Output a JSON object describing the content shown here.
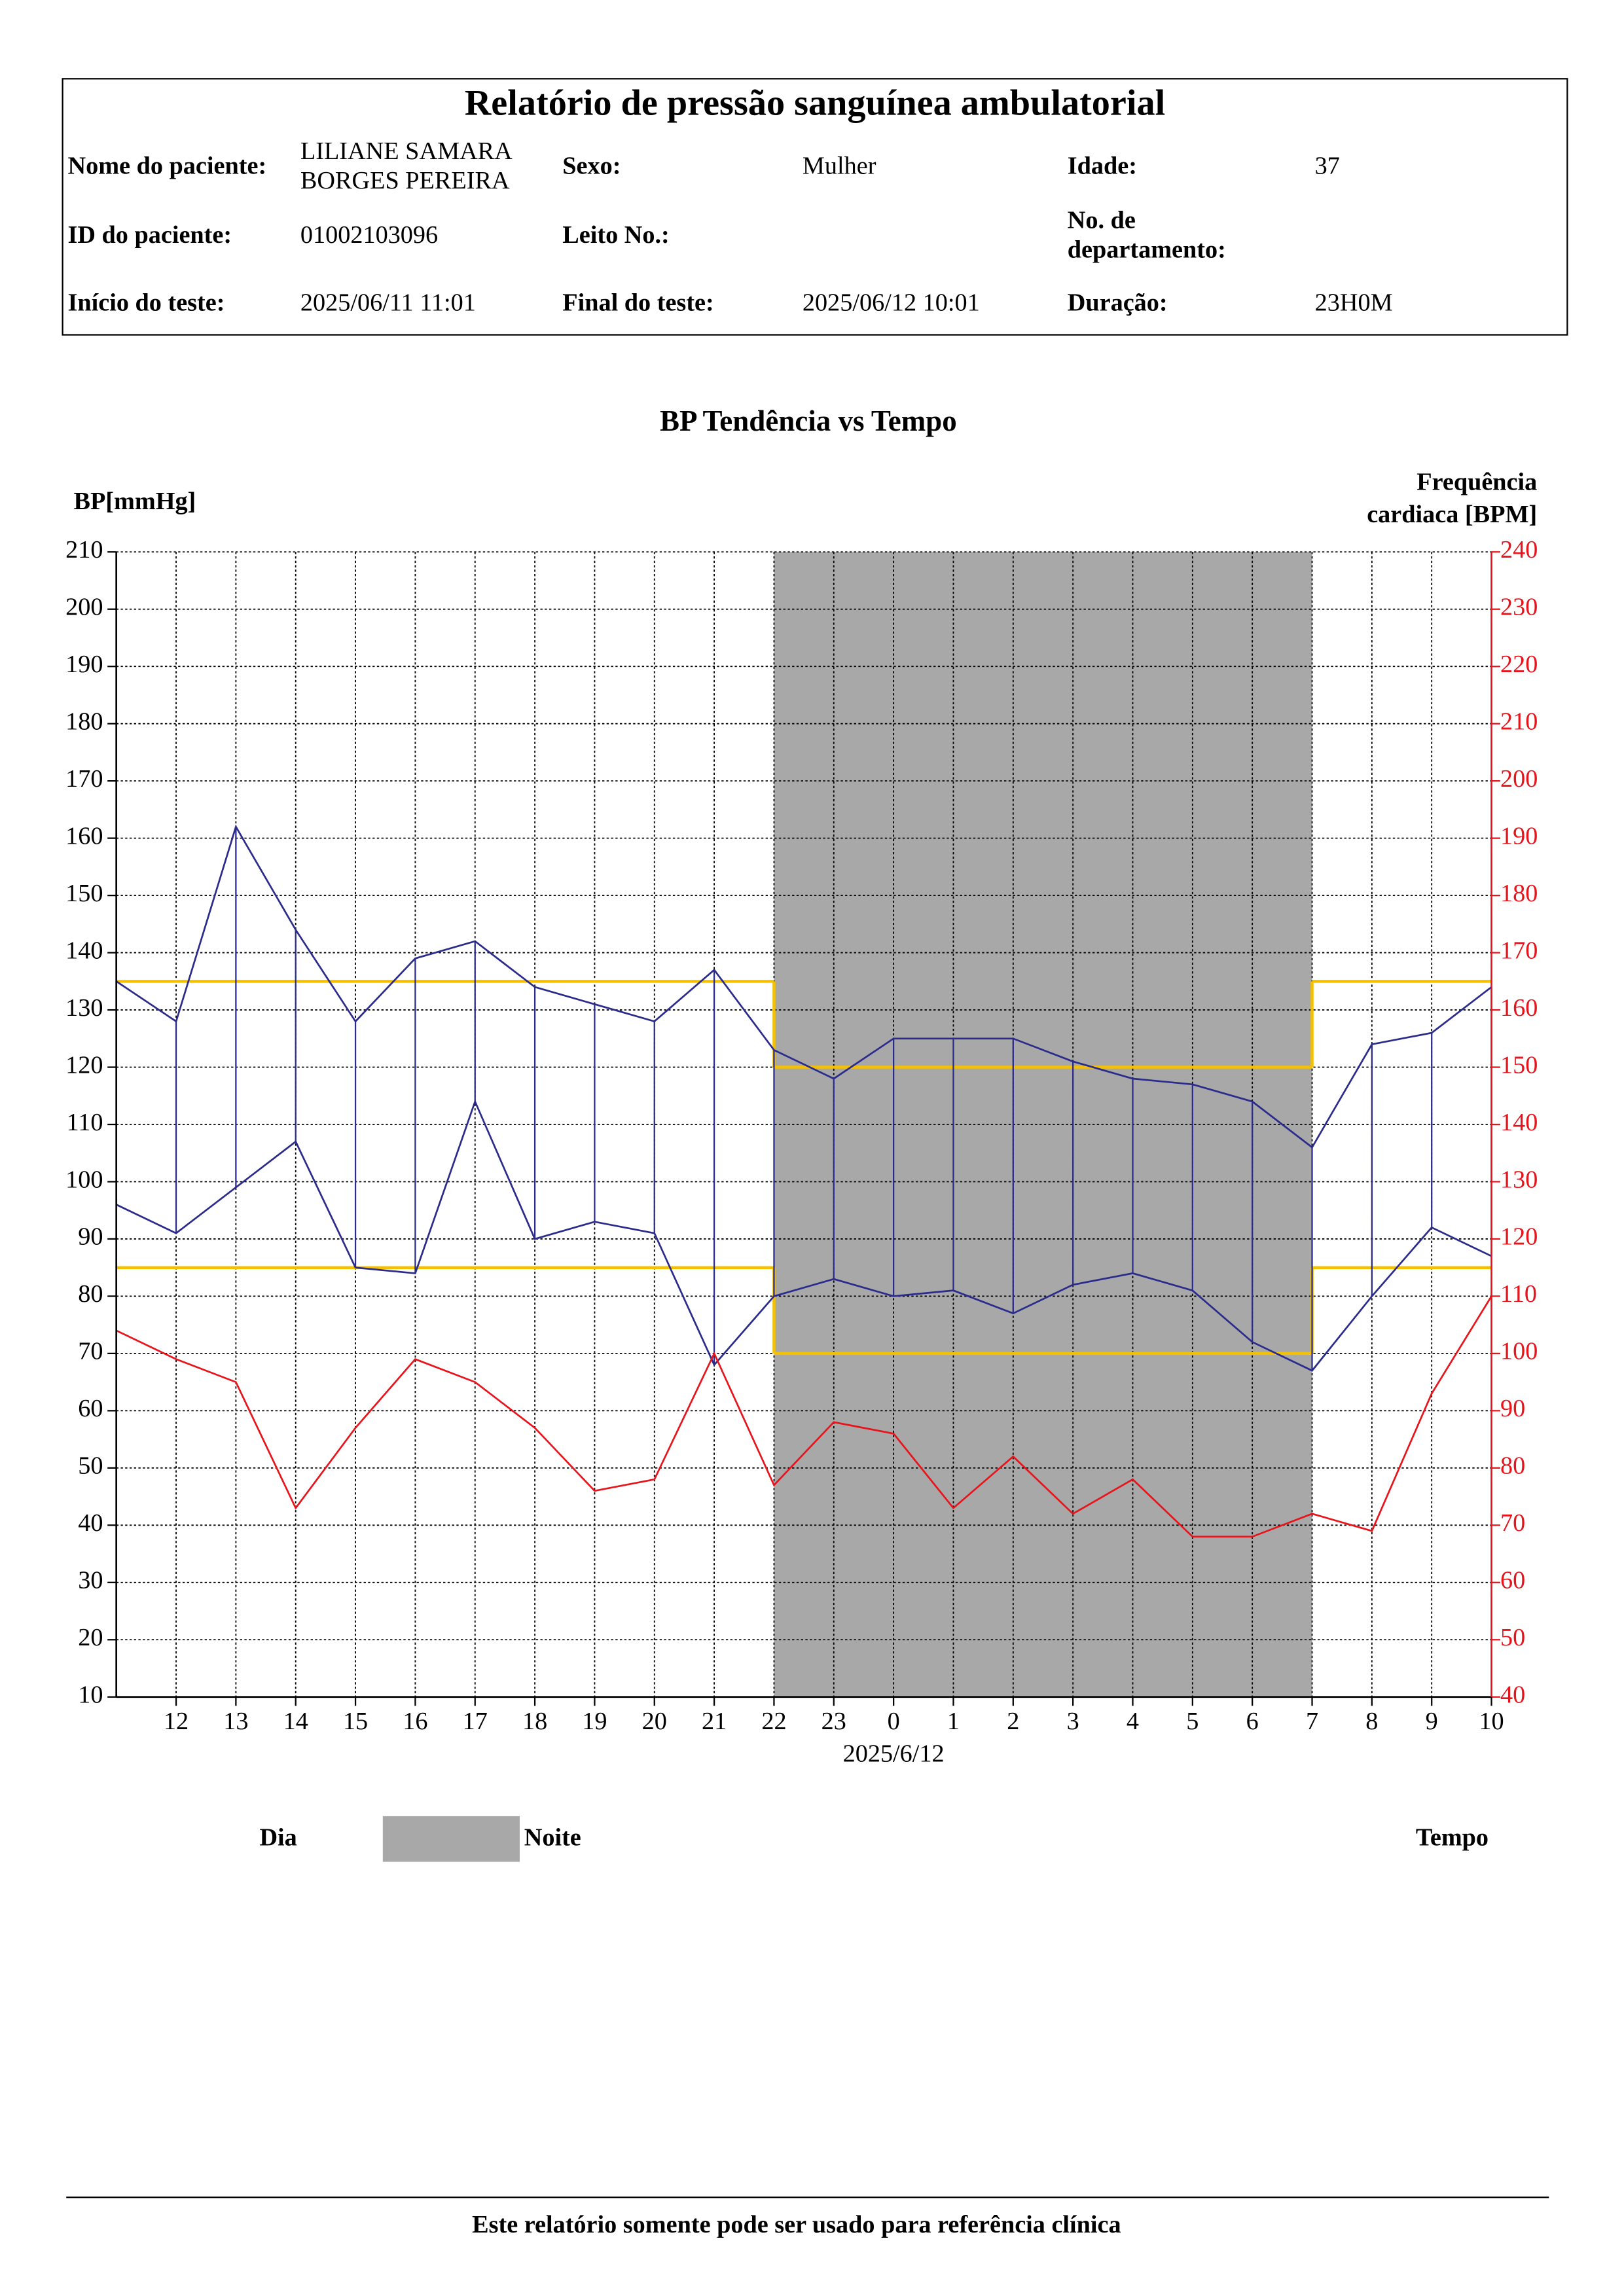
{
  "header": {
    "title": "Relatório de pressão sanguínea ambulatorial",
    "rows": [
      [
        {
          "label": "Nome do paciente:",
          "value": [
            "LILIANE SAMARA",
            "BORGES PEREIRA"
          ]
        },
        {
          "label": "Sexo:",
          "value": "Mulher"
        },
        {
          "label": "Idade:",
          "value": 37
        }
      ],
      [
        {
          "label": "ID do paciente:",
          "value": "01002103096"
        },
        {
          "label": "Leito No.:"
        },
        {
          "label": [
            "No. de",
            "departamento:"
          ]
        }
      ],
      [
        {
          "label": "Início do teste:",
          "value": "2025/06/11 11:01"
        },
        {
          "label": "Final do teste:",
          "value": "2025/06/12 10:01"
        },
        {
          "label": "Duração:",
          "value": "23H0M"
        }
      ]
    ]
  },
  "chart_data": {
    "type": "line",
    "title": "BP Tendência vs Tempo",
    "y_label": "BP[mmHg]",
    "y2_label": [
      "Frequência",
      "cardiaca [BPM]"
    ],
    "categories": [
      null,
      12,
      13,
      14,
      15,
      16,
      17,
      18,
      19,
      20,
      21,
      22,
      23,
      0,
      1,
      2,
      3,
      4,
      5,
      6,
      7,
      8,
      9,
      10
    ],
    "date_marker": {
      "label": "2025/6/12",
      "category": 0
    },
    "series": [
      {
        "color": "#2b2b8c",
        "values": [
          135,
          128,
          162,
          144,
          128,
          139,
          142,
          134,
          131,
          128,
          137,
          123,
          118,
          125,
          125,
          125,
          121,
          118,
          117,
          114,
          106,
          124,
          126,
          134
        ]
      },
      {
        "color": "#2b2b8c",
        "values": [
          96,
          91,
          99,
          107,
          85,
          84,
          114,
          90,
          93,
          91,
          68,
          80,
          83,
          80,
          81,
          77,
          82,
          84,
          81,
          72,
          67,
          80,
          92,
          87
        ]
      },
      {
        "color": "#e8141c",
        "axis": "y2",
        "values": [
          104,
          99,
          95,
          73,
          87,
          99,
          95,
          87,
          76,
          78,
          100,
          77,
          88,
          86,
          73,
          82,
          72,
          78,
          68,
          68,
          72,
          69,
          93,
          110
        ]
      }
    ],
    "thresholds": {
      "color": "#f5c000",
      "day": [
        135,
        85
      ],
      "night": [
        120,
        70
      ]
    },
    "night": {
      "start": 22,
      "end": 7,
      "color": "#a8a8a8"
    },
    "ylim": [
      10,
      210
    ],
    "yticks": [
      10,
      20,
      30,
      40,
      50,
      60,
      70,
      80,
      90,
      100,
      110,
      120,
      130,
      140,
      150,
      160,
      170,
      180,
      190,
      200,
      210
    ],
    "y2lim": [
      40,
      240
    ],
    "y2ticks": [
      40,
      50,
      60,
      70,
      80,
      90,
      100,
      110,
      120,
      130,
      140,
      150,
      160,
      170,
      180,
      190,
      200,
      210,
      220,
      230,
      240
    ],
    "grid": true,
    "legend": {
      "day": "Dia",
      "night": "Noite",
      "x_label": "Tempo"
    }
  },
  "footer": "Este relatório somente pode ser usado para referência clínica"
}
